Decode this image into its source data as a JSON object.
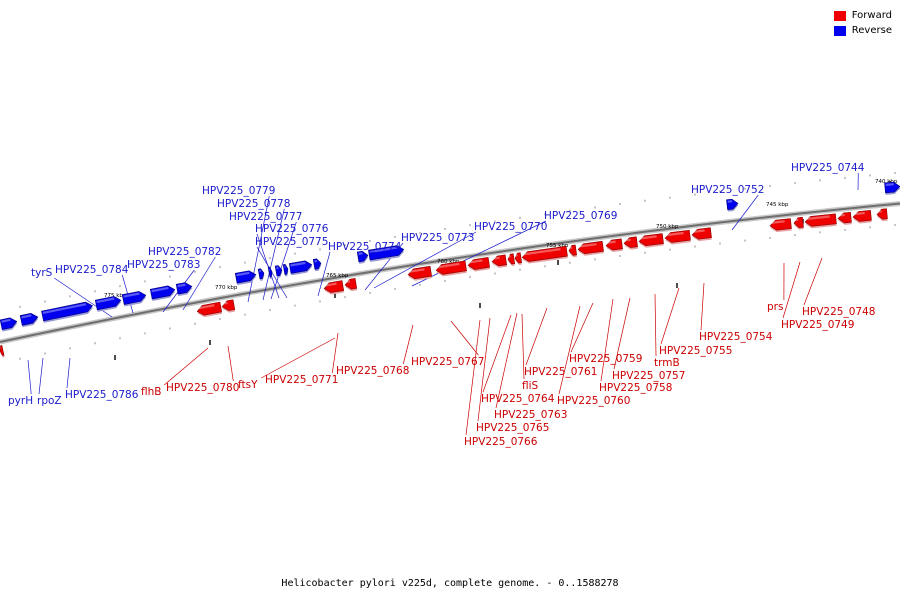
{
  "legend": {
    "forward_label": "Forward",
    "reverse_label": "Reverse",
    "forward_color": "#ee0000",
    "reverse_color": "#0000ee"
  },
  "caption": "Helicobacter pylori v225d, complete genome. - 0..1588278",
  "axis_ticks": [
    "740 kbp",
    "745 kbp",
    "750 kbp",
    "755 kbp",
    "760 kbp",
    "765 kbp",
    "770 kbp",
    "775 kbp"
  ],
  "reverse_genes": [
    "HPV225_0744",
    "HPV225_0752",
    "HPV225_0769",
    "HPV225_0770",
    "HPV225_0773",
    "HPV225_0774",
    "HPV225_0775",
    "HPV225_0776",
    "HPV225_0777",
    "HPV225_0778",
    "HPV225_0779",
    "HPV225_0782",
    "HPV225_0783",
    "HPV225_0784",
    "tyrS",
    "pyrH",
    "rpoZ",
    "HPV225_0786"
  ],
  "forward_genes": [
    "prs",
    "HPV225_0748",
    "HPV225_0749",
    "HPV225_0754",
    "HPV225_0755",
    "trmB",
    "HPV225_0757",
    "HPV225_0758",
    "HPV225_0759",
    "HPV225_0760",
    "HPV225_0761",
    "fliS",
    "HPV225_0763",
    "HPV225_0764",
    "HPV225_0765",
    "HPV225_0766",
    "HPV225_0767",
    "HPV225_0768",
    "HPV225_0771",
    "ftsY",
    "HPV225_0780",
    "flhB"
  ]
}
